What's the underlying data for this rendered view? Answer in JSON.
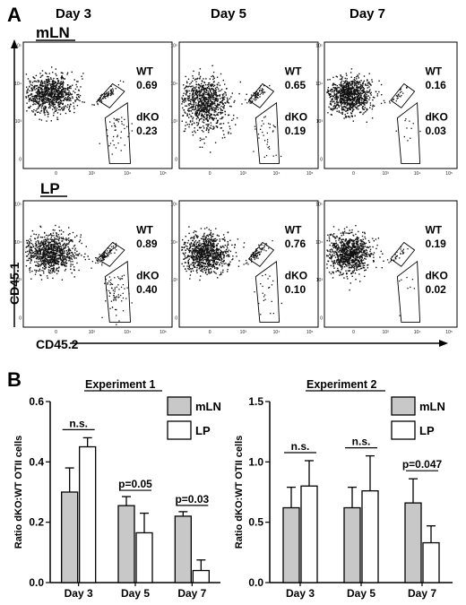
{
  "panel_a": {
    "letter": "A",
    "days": [
      "Day 3",
      "Day 5",
      "Day 7"
    ],
    "tissues": [
      "mLN",
      "LP"
    ],
    "x_axis_label": "CD45.2",
    "y_axis_label": "CD45.1",
    "gate_labels": {
      "wt": "WT",
      "dko": "dKO"
    },
    "x_tick_labels": [
      "0",
      "10³",
      "10⁴",
      "10⁵"
    ],
    "y_tick_labels": [
      "0",
      "10³",
      "10⁴",
      "10⁵"
    ],
    "plots": [
      {
        "tissue": "mLN",
        "day": "Day 3",
        "wt": "0.69",
        "dko": "0.23"
      },
      {
        "tissue": "mLN",
        "day": "Day 5",
        "wt": "0.65",
        "dko": "0.19"
      },
      {
        "tissue": "mLN",
        "day": "Day 7",
        "wt": "0.16",
        "dko": "0.03"
      },
      {
        "tissue": "LP",
        "day": "Day 3",
        "wt": "0.89",
        "dko": "0.40"
      },
      {
        "tissue": "LP",
        "day": "Day 5",
        "wt": "0.76",
        "dko": "0.10"
      },
      {
        "tissue": "LP",
        "day": "Day 7",
        "wt": "0.19",
        "dko": "0.02"
      }
    ]
  },
  "panel_b": {
    "letter": "B"
  },
  "colors": {
    "mLN": "#c8c8c8",
    "LP": "#ffffff",
    "dots": "#111111"
  },
  "chart_data": [
    {
      "type": "bar",
      "title": "Experiment 1",
      "ylabel": "Ratio dKO:WT OTII cells",
      "categories": [
        "Day 3",
        "Day 5",
        "Day 7"
      ],
      "ylim": [
        0,
        0.6
      ],
      "yticks": [
        0.0,
        0.2,
        0.4,
        0.6
      ],
      "ytick_labels": [
        "0.0",
        "0.2",
        "0.4",
        "0.6"
      ],
      "series": [
        {
          "name": "mLN",
          "values": [
            0.3,
            0.255,
            0.22
          ],
          "errors": [
            0.08,
            0.03,
            0.015
          ]
        },
        {
          "name": "LP",
          "values": [
            0.45,
            0.165,
            0.04
          ],
          "errors": [
            0.03,
            0.065,
            0.035
          ]
        }
      ],
      "annotations": [
        "n.s.",
        "p=0.05",
        "p=0.03"
      ],
      "legend_position": "top-right"
    },
    {
      "type": "bar",
      "title": "Experiment 2",
      "ylabel": "Ratio dKO:WT OTII cells",
      "categories": [
        "Day 3",
        "Day 5",
        "Day 7"
      ],
      "ylim": [
        0,
        1.5
      ],
      "yticks": [
        0.0,
        0.5,
        1.0,
        1.5
      ],
      "ytick_labels": [
        "0.0",
        "0.5",
        "1.0",
        "1.5"
      ],
      "series": [
        {
          "name": "mLN",
          "values": [
            0.62,
            0.62,
            0.66
          ],
          "errors": [
            0.17,
            0.17,
            0.2
          ]
        },
        {
          "name": "LP",
          "values": [
            0.8,
            0.76,
            0.33
          ],
          "errors": [
            0.21,
            0.29,
            0.14
          ]
        }
      ],
      "annotations": [
        "n.s.",
        "n.s.",
        "p=0.047"
      ],
      "legend_position": "top-right"
    }
  ]
}
